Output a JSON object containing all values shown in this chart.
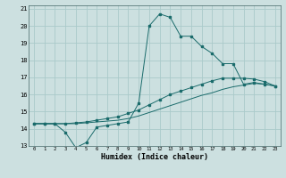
{
  "xlabel": "Humidex (Indice chaleur)",
  "bg_color": "#cce0e0",
  "grid_color": "#aacaca",
  "line_color": "#1a6b6b",
  "xlim": [
    -0.5,
    23.5
  ],
  "ylim": [
    13,
    21.2
  ],
  "xticks": [
    0,
    1,
    2,
    3,
    4,
    5,
    6,
    7,
    8,
    9,
    10,
    11,
    12,
    13,
    14,
    15,
    16,
    17,
    18,
    19,
    20,
    21,
    22,
    23
  ],
  "yticks": [
    13,
    14,
    15,
    16,
    17,
    18,
    19,
    20,
    21
  ],
  "line1_x": [
    0,
    1,
    2,
    3,
    4,
    5,
    6,
    7,
    8,
    9,
    10,
    11,
    12,
    13,
    14,
    15,
    16,
    17,
    18,
    19,
    20,
    21,
    22,
    23
  ],
  "line1_y": [
    14.3,
    14.3,
    14.3,
    13.8,
    12.9,
    13.2,
    14.1,
    14.2,
    14.3,
    14.4,
    15.5,
    20.0,
    20.7,
    20.5,
    19.4,
    19.4,
    18.8,
    18.4,
    17.8,
    17.8,
    16.6,
    16.7,
    16.6,
    16.5
  ],
  "line2_x": [
    0,
    1,
    2,
    3,
    4,
    5,
    6,
    7,
    8,
    9,
    10,
    11,
    12,
    13,
    14,
    15,
    16,
    17,
    18,
    19,
    20,
    21,
    22,
    23
  ],
  "line2_y": [
    14.3,
    14.3,
    14.3,
    14.3,
    14.35,
    14.4,
    14.5,
    14.6,
    14.7,
    14.9,
    15.1,
    15.4,
    15.7,
    16.0,
    16.2,
    16.4,
    16.6,
    16.8,
    16.95,
    16.95,
    16.95,
    16.9,
    16.75,
    16.5
  ],
  "line3_x": [
    0,
    1,
    2,
    3,
    4,
    5,
    6,
    7,
    8,
    9,
    10,
    11,
    12,
    13,
    14,
    15,
    16,
    17,
    18,
    19,
    20,
    21,
    22,
    23
  ],
  "line3_y": [
    14.3,
    14.3,
    14.3,
    14.3,
    14.3,
    14.35,
    14.4,
    14.45,
    14.5,
    14.6,
    14.75,
    14.95,
    15.15,
    15.35,
    15.55,
    15.75,
    15.95,
    16.1,
    16.3,
    16.45,
    16.55,
    16.65,
    16.6,
    16.5
  ]
}
